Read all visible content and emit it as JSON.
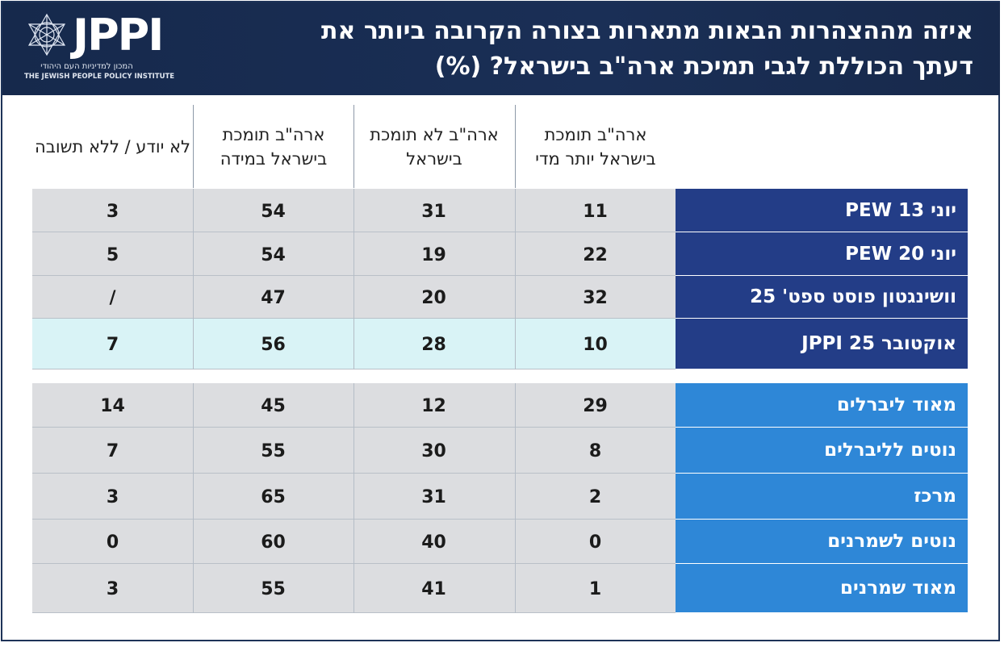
{
  "header": {
    "title": "איזה מההצהרות הבאות מתארות בצורה הקרובה ביותר את דעתך הכוללת לגבי תמיכת ארה\"ב בישראל? (%)",
    "logo_text": "JPPI",
    "logo_hebrew": "המכון למדיניות העם היהודי",
    "logo_english": "THE JEWISH PEOPLE POLICY INSTITUTE"
  },
  "chart_data": {
    "type": "table",
    "title": "איזה מההצהרות הבאות מתארות בצורה הקרובה ביותר את דעתך הכוללת לגבי תמיכת ארה\"ב בישראל? (%)",
    "columns": [
      "ארה\"ב תומכת בישראל יותר מדי",
      "ארה\"ב לא תומכת בישראל",
      "ארה\"ב תומכת בישראל במידה",
      "לא יודע / ללא תשובה"
    ],
    "groups": [
      {
        "rows": [
          {
            "label": "יוני 13 PEW",
            "values": [
              "11",
              "31",
              "54",
              "3"
            ]
          },
          {
            "label": "יוני 20 PEW",
            "values": [
              "22",
              "19",
              "54",
              "5"
            ]
          },
          {
            "label": "וושינגטון פוסט ספט' 25",
            "values": [
              "32",
              "20",
              "47",
              "/"
            ]
          },
          {
            "label": "אוקטובר 25 JPPI",
            "values": [
              "10",
              "28",
              "56",
              "7"
            ],
            "highlight": true
          }
        ]
      },
      {
        "rows": [
          {
            "label": "מאוד ליברלים",
            "values": [
              "29",
              "12",
              "45",
              "14"
            ]
          },
          {
            "label": "נוטים לליברלים",
            "values": [
              "8",
              "30",
              "55",
              "7"
            ]
          },
          {
            "label": "מרכז",
            "values": [
              "2",
              "31",
              "65",
              "3"
            ]
          },
          {
            "label": "נוטים לשמרנים",
            "values": [
              "0",
              "40",
              "60",
              "0"
            ]
          },
          {
            "label": "מאוד שמרנים",
            "values": [
              "1",
              "41",
              "55",
              "3"
            ]
          }
        ]
      }
    ]
  },
  "colors": {
    "header_bg": "#17294b",
    "label_dark": "#233d87",
    "label_light": "#2e87d7",
    "cell_gray": "#dcdde0",
    "cell_highlight": "#d9f3f6"
  }
}
